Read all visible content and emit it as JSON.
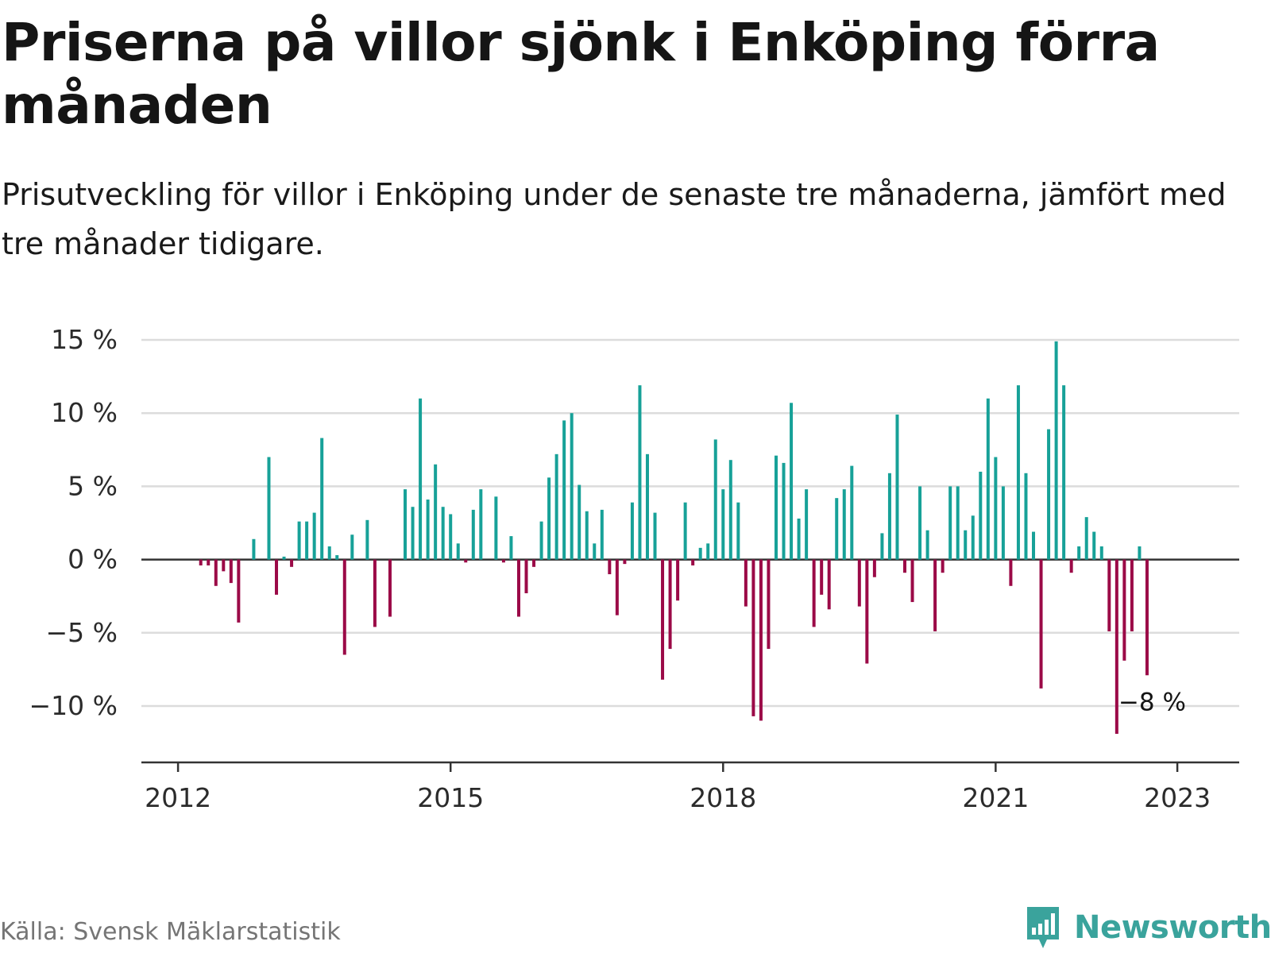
{
  "title": "Priserna på villor sjönk i Enköping förra månaden",
  "subtitle": "Prisutveckling för villor i Enköping under de senaste tre månaderna, jämfört med tre månader tidigare.",
  "source": "Källa: Svensk Mäklarstatistik",
  "brand": "Newsworthy",
  "colors": {
    "positive": "#17a198",
    "negative": "#9b0a47",
    "grid": "#dcdcdc",
    "axis": "#333333",
    "brand": "#3aa39c"
  },
  "chart_data": {
    "type": "bar",
    "x_unit": "month",
    "start": "2011-09",
    "ylim": [
      -12.5,
      15
    ],
    "yticks": [
      15,
      10,
      5,
      0,
      -5,
      -10
    ],
    "ytick_labels": [
      "15 %",
      "10 %",
      "5 %",
      "0 %",
      "−5 %",
      "−10 %"
    ],
    "xticks": [
      "2012",
      "2015",
      "2018",
      "2021",
      "2023"
    ],
    "grid": true,
    "annotation": "−8 %",
    "values": [
      0,
      0,
      0,
      0,
      0,
      0,
      0,
      -0.4,
      -0.4,
      -1.8,
      -0.8,
      -1.6,
      -4.3,
      0,
      1.4,
      0,
      7,
      -2.4,
      0.2,
      -0.5,
      2.6,
      2.6,
      3.2,
      8.3,
      0.9,
      0.3,
      -6.5,
      1.7,
      0,
      2.7,
      -4.6,
      0,
      -3.9,
      0,
      4.8,
      3.6,
      11,
      4.1,
      6.5,
      3.6,
      3.1,
      1.1,
      -0.2,
      3.4,
      4.8,
      0,
      4.3,
      -0.2,
      1.6,
      -3.9,
      -2.3,
      -0.5,
      2.6,
      5.6,
      7.2,
      9.5,
      10,
      5.1,
      3.3,
      1.1,
      3.4,
      -1,
      -3.8,
      -0.3,
      3.9,
      11.9,
      7.2,
      3.2,
      -8.2,
      -6.1,
      -2.8,
      3.9,
      -0.4,
      0.8,
      1.1,
      8.2,
      4.8,
      6.8,
      3.9,
      -3.2,
      -10.7,
      -11,
      -6.1,
      7.1,
      6.6,
      10.7,
      2.8,
      4.8,
      -4.6,
      -2.4,
      -3.4,
      4.2,
      4.8,
      6.4,
      -3.2,
      -7.1,
      -1.2,
      1.8,
      5.9,
      9.9,
      -0.9,
      -2.9,
      5,
      2,
      -4.9,
      -0.9,
      5,
      5,
      2,
      3,
      6,
      11,
      7,
      5,
      -1.8,
      11.9,
      5.9,
      1.9,
      -8.8,
      8.9,
      14.9,
      11.9,
      -0.9,
      0.9,
      2.9,
      1.9,
      0.9,
      -4.9,
      -11.9,
      -6.9,
      -4.9,
      0.9,
      -7.9
    ]
  }
}
